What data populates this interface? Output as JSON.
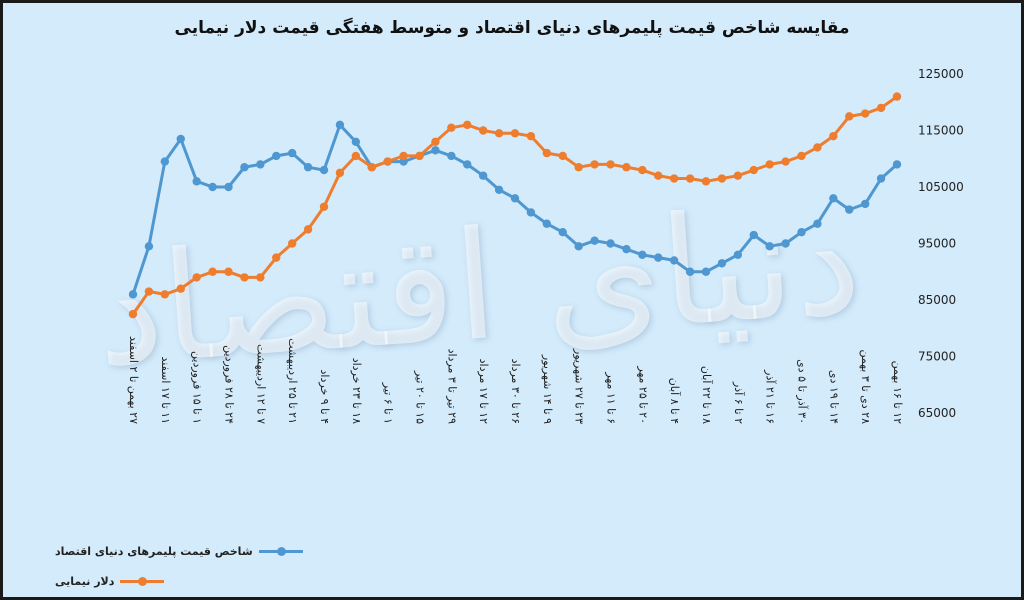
{
  "watermark": "دنیای اقتصاد",
  "chart_data": {
    "type": "line",
    "title": "مقایسه شاخص قیمت پلیمرهای دنیای اقتصاد و متوسط هفتگی قیمت دلار نیمایی",
    "xlabel": "",
    "ylabel": "",
    "ylim": [
      65000,
      125000
    ],
    "yticks": [
      65000,
      75000,
      85000,
      95000,
      105000,
      115000,
      125000
    ],
    "grid": false,
    "legend_position": "bottom-left",
    "categories": [
      "۲۷ بهمن تا ۲ اسفند",
      "",
      "۱۱ تا ۱۷ اسفند",
      "",
      "۱ تا ۱۵ فروردین",
      "",
      "۲۴ تا ۲۸ فروردین",
      "",
      "۷ تا ۱۲ اردیبهشت",
      "",
      "۲۱ تا ۲۵ اردیبهشت",
      "",
      "۴ تا ۹ خرداد",
      "",
      "۱۸ تا ۲۳ خرداد",
      "",
      "۱ تا ۶ تیر",
      "",
      "۱۵ تا ۲۰ تیر",
      "",
      "۲۹ تیر تا ۳ مرداد",
      "",
      "۱۲ تا ۱۷ مرداد",
      "",
      "۲۶ تا ۳۰ مرداد",
      "",
      "۹ تا ۱۴ شهریور",
      "",
      "۲۳ تا ۲۷ شهریور",
      "",
      "۶ تا ۱۱ مهر",
      "",
      "۲۰ تا ۲۵ مهر",
      "",
      "۴ تا ۸ آبان",
      "",
      "۱۸ تا ۲۲ آبان",
      "",
      "۲ تا ۶ آذر",
      "",
      "۱۶ تا ۲۱ آذر",
      "",
      "۳۰ آذر تا ۵ دی",
      "",
      "۱۴ تا ۱۹ دی",
      "",
      "۲۸ دی تا ۳ بهمن",
      "",
      "۱۲ تا ۱۶ بهمن"
    ],
    "series": [
      {
        "name": "شاخص قیمت پلیمرهای دنیای اقتصاد",
        "color": "#4f97d0",
        "values": [
          86000,
          94500,
          109500,
          113500,
          106000,
          105000,
          105000,
          108500,
          109000,
          110500,
          111000,
          108500,
          108000,
          116000,
          113000,
          108500,
          109500,
          109500,
          110500,
          111500,
          110500,
          109000,
          107000,
          104500,
          103000,
          100500,
          98500,
          97000,
          94500,
          95500,
          95000,
          94000,
          93000,
          92500,
          92000,
          90000,
          90000,
          91500,
          93000,
          96500,
          94500,
          95000,
          97000,
          98500,
          103000,
          101000,
          102000,
          106500,
          109000
        ]
      },
      {
        "name": "دلار نیمایی",
        "color": "#ef7d2e",
        "values": [
          82500,
          86500,
          86000,
          87000,
          89000,
          90000,
          90000,
          89000,
          89000,
          92500,
          95000,
          97500,
          101500,
          107500,
          110500,
          108500,
          109500,
          110500,
          110500,
          113000,
          115500,
          116000,
          115000,
          114500,
          114500,
          114000,
          111000,
          110500,
          108500,
          109000,
          109000,
          108500,
          108000,
          107000,
          106500,
          106500,
          106000,
          106500,
          107000,
          108000,
          109000,
          109500,
          110500,
          112000,
          114000,
          117500,
          118000,
          119000,
          121000
        ]
      }
    ]
  }
}
